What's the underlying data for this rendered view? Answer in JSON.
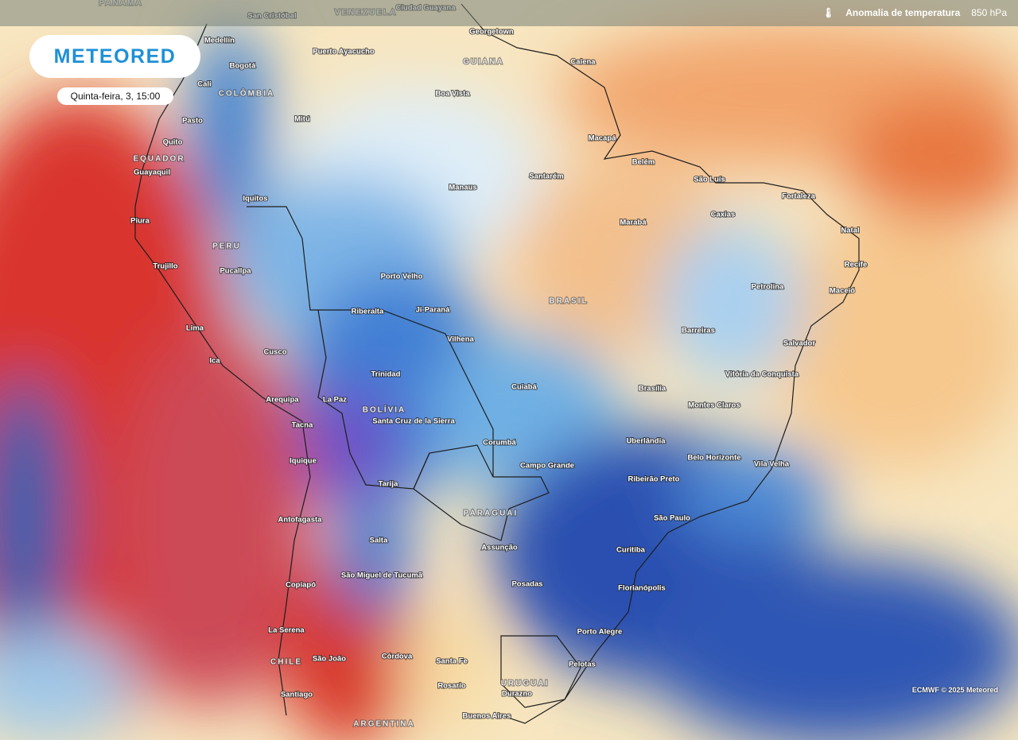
{
  "header": {
    "legend_title": "Anomalia de temperatura",
    "level": "850 hPa"
  },
  "logo": "METEORED",
  "timestamp": "Quinta-feira, 3, 15:00",
  "credit": "ECMWF © 2025 Meteored",
  "countries": [
    "PANAMÁ",
    "VENEZUELA",
    "GUIANA",
    "COLÔMBIA",
    "EQUADOR",
    "PERU",
    "BRASIL",
    "BOLÍVIA",
    "PARAGUAI",
    "CHILE",
    "URUGUAI",
    "ARGENTINA"
  ],
  "cities": [
    "San Cristóbal",
    "Ciudad Guayana",
    "Georgetown",
    "Medellín",
    "Puerto Ayacucho",
    "Caiena",
    "Bogotá",
    "Cali",
    "Boa Vista",
    "Pasto",
    "Mitú",
    "Quito",
    "Macapá",
    "Belém",
    "Guayaquil",
    "Santarém",
    "São Luís",
    "Manaus",
    "Fortaleza",
    "Iquitos",
    "Caxias",
    "Piura",
    "Marabá",
    "Natal",
    "Trujillo",
    "Pucallpa",
    "Recife",
    "Porto Velho",
    "Petrolina",
    "Maceió",
    "Riberalta",
    "Ji-Paraná",
    "Lima",
    "Barreiras",
    "Cusco",
    "Vilhena",
    "Salvador",
    "Ica",
    "Trinidad",
    "Vitória da Conquista",
    "Cuiabá",
    "Brasília",
    "Arequipa",
    "La Paz",
    "Montes Claros",
    "Santa Cruz de la Sierra",
    "Tacna",
    "Corumbá",
    "Uberlândia",
    "Campo Grande",
    "Belo Horizonte",
    "Vila Velha",
    "Iquique",
    "Ribeirão Preto",
    "Tarija",
    "São Paulo",
    "Antofagasta",
    "Salta",
    "Assunção",
    "Curitiba",
    "São Miguel de Tucumã",
    "Copiapó",
    "Posadas",
    "Florianópolis",
    "La Serena",
    "Porto Alegre",
    "São João",
    "Córdova",
    "Santa Fe",
    "Pelotas",
    "Rosario",
    "Santiago",
    "Durazno",
    "Buenos Aires"
  ]
}
